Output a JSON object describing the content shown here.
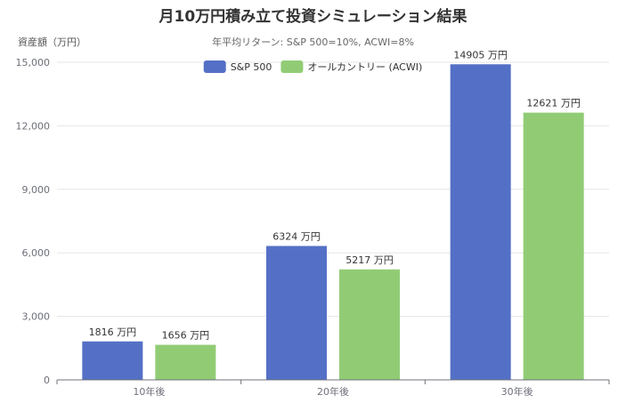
{
  "chart_data": {
    "type": "bar",
    "title": "月10万円積み立て投資シミュレーション結果",
    "subtitle": "年平均リターン: S&P 500=10%, ACWI=8%",
    "ylabel": "資産額（万円）",
    "xlabel": "",
    "categories": [
      "10年後",
      "20年後",
      "30年後"
    ],
    "series": [
      {
        "name": "S&P 500",
        "color": "#5470c6",
        "values": [
          1816,
          6324,
          14905
        ]
      },
      {
        "name": "オールカントリー (ACWI)",
        "color": "#91cc75",
        "values": [
          1656,
          5217,
          12621
        ]
      }
    ],
    "value_suffix": " 万円",
    "ylim": [
      0,
      15000
    ],
    "yticks": [
      0,
      3000,
      6000,
      9000,
      12000,
      15000
    ],
    "ytick_labels": [
      "0",
      "3,000",
      "6,000",
      "9,000",
      "12,000",
      "15,000"
    ],
    "grid": true,
    "legend_position": "top-center"
  }
}
